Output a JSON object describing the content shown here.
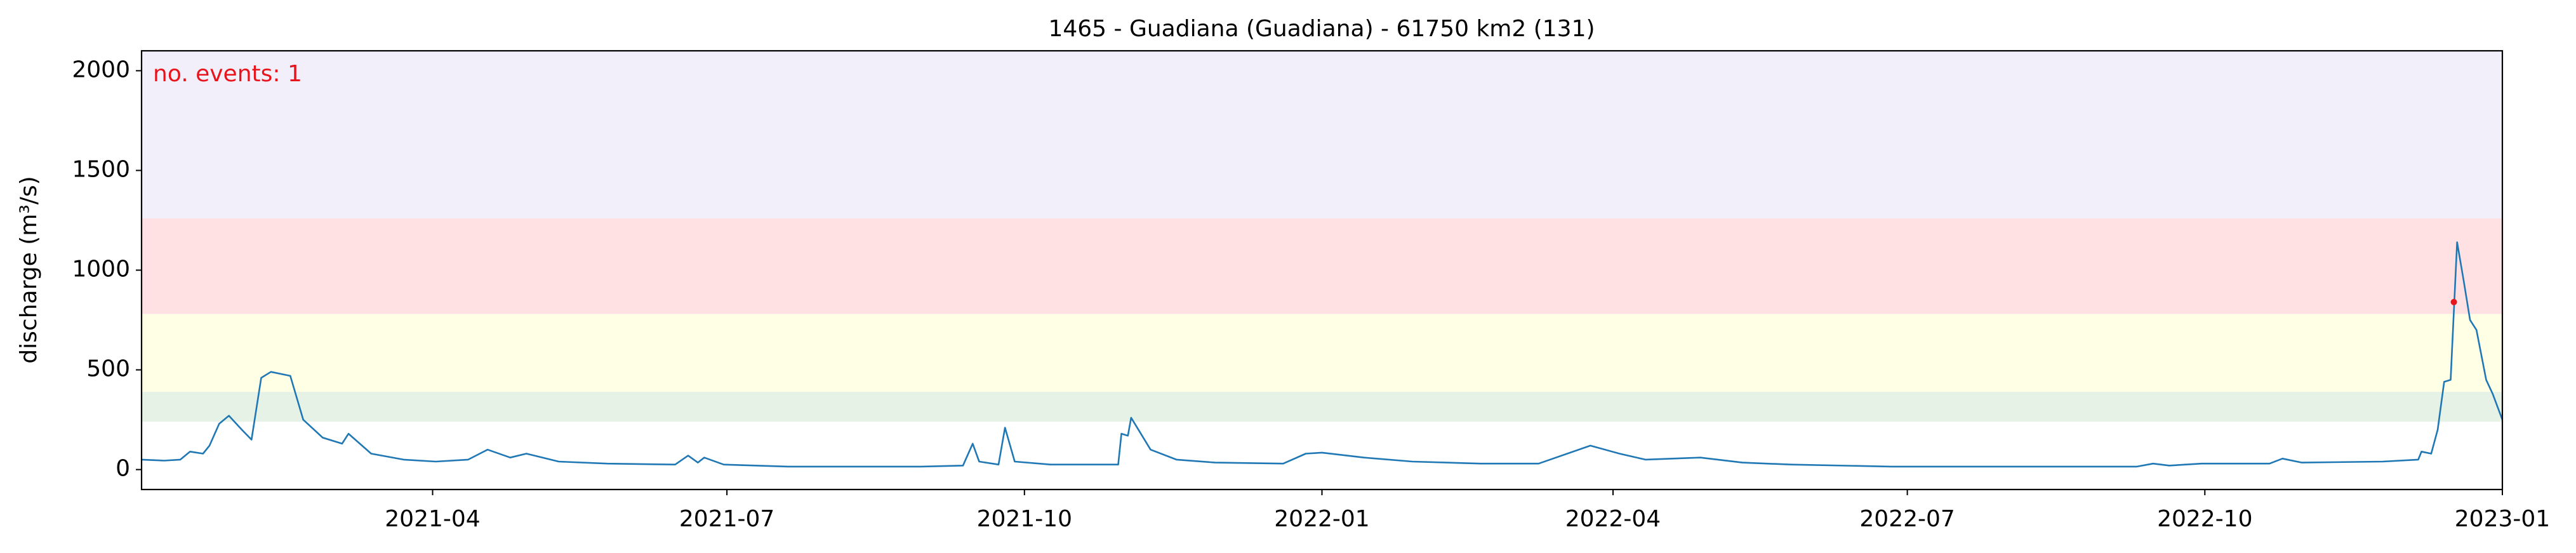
{
  "chart_data": {
    "type": "line",
    "title": "1465 - Guadiana (Guadiana) - 61750 km2 (131)",
    "y_label": "discharge (m³/s)",
    "annotation": "no. events: 1",
    "annotation_color": "#e8141c",
    "xlim": [
      "2021-01-01",
      "2023-01-01"
    ],
    "xticks": [
      {
        "value": "2021-04-01",
        "label": "2021-04"
      },
      {
        "value": "2021-07-01",
        "label": "2021-07"
      },
      {
        "value": "2021-10-01",
        "label": "2021-10"
      },
      {
        "value": "2022-01-01",
        "label": "2022-01"
      },
      {
        "value": "2022-04-01",
        "label": "2022-04"
      },
      {
        "value": "2022-07-01",
        "label": "2022-07"
      },
      {
        "value": "2022-10-01",
        "label": "2022-10"
      },
      {
        "value": "2023-01-01",
        "label": "2023-01"
      }
    ],
    "ylim": [
      -100,
      2100
    ],
    "yticks": [
      0,
      500,
      1000,
      1500,
      2000
    ],
    "thresholds": [
      240,
      390,
      780,
      1260
    ],
    "threshold_colors": [
      "#e6f2e6",
      "#ffffe6",
      "#ffe1e4",
      "#f2eefa"
    ],
    "x": [
      "2021-01-01",
      "2021-01-08",
      "2021-01-13",
      "2021-01-16",
      "2021-01-20",
      "2021-01-22",
      "2021-01-25",
      "2021-01-28",
      "2021-02-01",
      "2021-02-04",
      "2021-02-07",
      "2021-02-10",
      "2021-02-16",
      "2021-02-20",
      "2021-02-26",
      "2021-03-04",
      "2021-03-06",
      "2021-03-13",
      "2021-03-23",
      "2021-04-02",
      "2021-04-12",
      "2021-04-18",
      "2021-04-25",
      "2021-04-30",
      "2021-05-10",
      "2021-05-25",
      "2021-06-15",
      "2021-06-19",
      "2021-06-22",
      "2021-06-24",
      "2021-06-30",
      "2021-07-20",
      "2021-08-30",
      "2021-09-12",
      "2021-09-15",
      "2021-09-17",
      "2021-09-23",
      "2021-09-25",
      "2021-09-28",
      "2021-10-09",
      "2021-10-30",
      "2021-10-31",
      "2021-11-02",
      "2021-11-03",
      "2021-11-09",
      "2021-11-17",
      "2021-11-29",
      "2021-12-20",
      "2021-12-27",
      "2022-01-01",
      "2022-01-14",
      "2022-01-29",
      "2022-02-19",
      "2022-03-09",
      "2022-03-25",
      "2022-04-03",
      "2022-04-11",
      "2022-04-28",
      "2022-05-11",
      "2022-05-26",
      "2022-06-26",
      "2022-09-10",
      "2022-09-15",
      "2022-09-20",
      "2022-09-30",
      "2022-10-21",
      "2022-10-25",
      "2022-10-31",
      "2022-11-25",
      "2022-12-06",
      "2022-12-07",
      "2022-12-10",
      "2022-12-12",
      "2022-12-14",
      "2022-12-16",
      "2022-12-18",
      "2022-12-20",
      "2022-12-22",
      "2022-12-24",
      "2022-12-27",
      "2022-12-29",
      "2023-01-01"
    ],
    "series": [
      {
        "name": "discharge",
        "color": "#1f77b4",
        "values": [
          50,
          45,
          50,
          90,
          80,
          120,
          230,
          270,
          200,
          150,
          460,
          490,
          470,
          250,
          160,
          130,
          180,
          80,
          50,
          40,
          50,
          100,
          60,
          80,
          40,
          30,
          25,
          70,
          35,
          60,
          25,
          15,
          15,
          20,
          130,
          40,
          25,
          210,
          40,
          25,
          25,
          180,
          170,
          260,
          100,
          50,
          35,
          30,
          80,
          85,
          60,
          40,
          30,
          30,
          120,
          80,
          50,
          60,
          35,
          25,
          15,
          15,
          30,
          20,
          30,
          30,
          55,
          35,
          40,
          50,
          90,
          80,
          200,
          440,
          450,
          1140,
          950,
          750,
          700,
          450,
          380,
          250
        ]
      }
    ],
    "events": {
      "x": [
        "2022-12-17"
      ],
      "values": [
        840
      ],
      "color": "#e8141c"
    }
  }
}
